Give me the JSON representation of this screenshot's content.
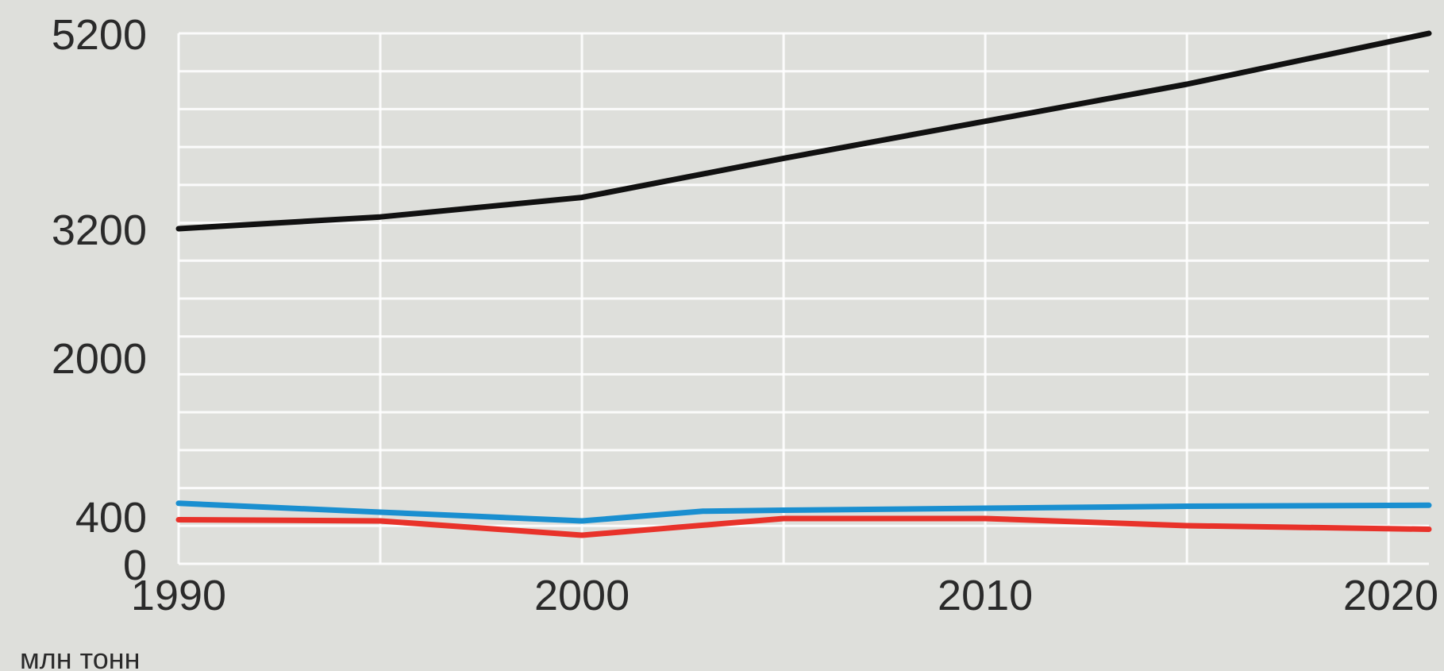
{
  "chart_data": {
    "type": "line",
    "unit_label": "млн тонн",
    "x_ticks": [
      1990,
      2000,
      2010,
      2020
    ],
    "y_ticks": [
      0,
      400,
      2000,
      3200,
      5200
    ],
    "xlim": [
      1990,
      2021
    ],
    "grid": true,
    "series": [
      {
        "color": "#111111",
        "points": [
          [
            1990,
            3200
          ],
          [
            1995,
            3320
          ],
          [
            2000,
            3520
          ],
          [
            2005,
            3920
          ],
          [
            2010,
            4300
          ],
          [
            2015,
            4680
          ],
          [
            2021,
            5200
          ]
        ]
      },
      {
        "color": "#1a8fd0",
        "points": [
          [
            1990,
            530
          ],
          [
            1995,
            440
          ],
          [
            2000,
            360
          ],
          [
            2003,
            450
          ],
          [
            2005,
            460
          ],
          [
            2010,
            480
          ],
          [
            2015,
            500
          ],
          [
            2021,
            510
          ]
        ]
      },
      {
        "color": "#e8322a",
        "points": [
          [
            1990,
            370
          ],
          [
            1995,
            360
          ],
          [
            2000,
            240
          ],
          [
            2005,
            380
          ],
          [
            2010,
            380
          ],
          [
            2015,
            320
          ],
          [
            2021,
            290
          ]
        ]
      }
    ]
  }
}
